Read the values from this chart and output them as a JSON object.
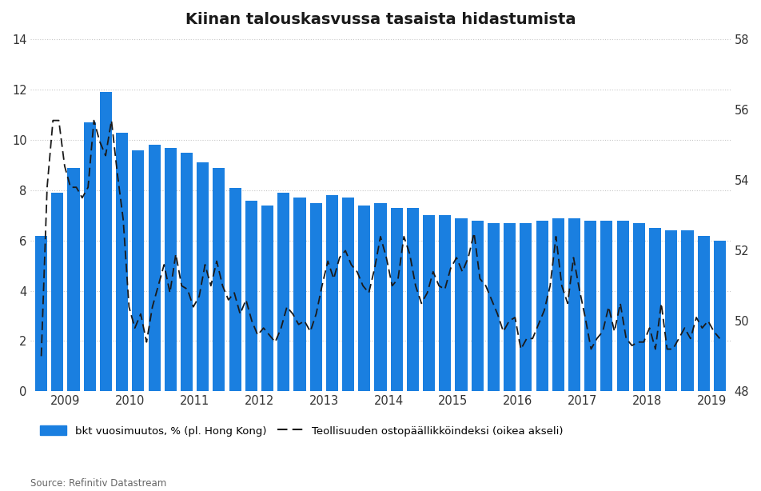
{
  "title": "Kiinan talouskasvussa tasaista hidastumista",
  "source": "Source: Refinitiv Datastream",
  "bar_color": "#1a7fe0",
  "line_color": "#1a1a1a",
  "ylim_left": [
    0,
    14
  ],
  "ylim_right": [
    48,
    58
  ],
  "left_ticks": [
    0,
    2,
    4,
    6,
    8,
    10,
    12,
    14
  ],
  "right_ticks": [
    48,
    50,
    52,
    54,
    56,
    58
  ],
  "background_color": "#ffffff",
  "legend_bar_label": "bkt vuosimuutos, % (pl. Hong Kong)",
  "legend_line_label": "Teollisuuden ostopäällikköindeksi (oikea akseli)",
  "bar_values": [
    6.2,
    7.9,
    8.9,
    10.7,
    11.9,
    10.3,
    9.6,
    9.8,
    9.7,
    9.5,
    9.1,
    8.9,
    8.1,
    7.6,
    7.4,
    7.9,
    7.7,
    7.5,
    7.8,
    7.7,
    7.4,
    7.5,
    7.3,
    7.3,
    7.0,
    7.0,
    6.9,
    6.8,
    6.7,
    6.7,
    6.7,
    6.8,
    6.9,
    6.9,
    6.8,
    6.8,
    6.8,
    6.7,
    6.5,
    6.4,
    6.4,
    6.2,
    6.0
  ],
  "pmi_values": [
    49.0,
    53.8,
    55.7,
    55.7,
    54.4,
    53.8,
    53.8,
    53.5,
    53.8,
    55.7,
    55.1,
    54.7,
    55.7,
    54.2,
    52.9,
    50.4,
    49.8,
    50.2,
    49.4,
    50.4,
    51.0,
    51.6,
    50.8,
    51.9,
    51.0,
    50.9,
    50.4,
    50.7,
    51.6,
    51.0,
    51.7,
    51.0,
    50.6,
    50.8,
    50.2,
    50.6,
    50.0,
    49.6,
    49.8,
    49.6,
    49.4,
    49.8,
    50.4,
    50.2,
    49.9,
    50.0,
    49.7,
    50.2,
    51.0,
    51.7,
    51.2,
    51.8,
    52.0,
    51.6,
    51.4,
    51.0,
    50.8,
    51.5,
    52.4,
    51.8,
    51.0,
    51.2,
    52.4,
    51.9,
    51.0,
    50.5,
    50.8,
    51.4,
    51.0,
    50.9,
    51.5,
    51.8,
    51.4,
    51.8,
    52.5,
    51.2,
    51.0,
    50.6,
    50.2,
    49.7,
    50.0,
    50.1,
    49.2,
    49.5,
    49.5,
    49.9,
    50.3,
    51.0,
    52.4,
    51.0,
    50.5,
    51.8,
    50.9,
    50.1,
    49.2,
    49.5,
    49.7,
    50.4,
    49.7,
    50.5,
    49.5,
    49.3,
    49.4,
    49.4,
    49.8,
    49.2,
    50.5,
    49.2,
    49.2,
    49.5,
    49.8,
    49.5,
    50.1,
    49.8,
    50.0,
    49.7,
    49.5
  ],
  "year_labels": [
    "2009",
    "2010",
    "2011",
    "2012",
    "2013",
    "2014",
    "2015",
    "2016",
    "2017",
    "2018",
    "2019"
  ]
}
